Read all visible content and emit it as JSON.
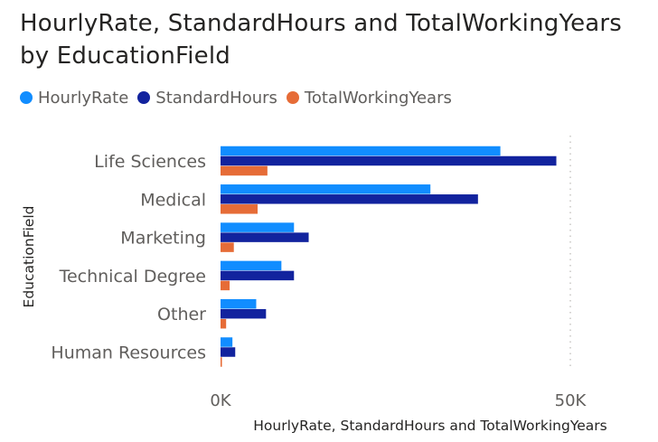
{
  "chart_data": {
    "type": "bar",
    "orientation": "horizontal",
    "title": "HourlyRate, StandardHours and TotalWorkingYears by EducationField",
    "xlabel": "HourlyRate, StandardHours and TotalWorkingYears",
    "ylabel": "EducationField",
    "categories": [
      "Life Sciences",
      "Medical",
      "Marketing",
      "Technical Degree",
      "Other",
      "Human Resources"
    ],
    "series": [
      {
        "name": "HourlyRate",
        "color": "#118DFF",
        "values": [
          40000,
          30000,
          10500,
          8700,
          5100,
          1700
        ]
      },
      {
        "name": "StandardHours",
        "color": "#12239E",
        "values": [
          48000,
          36800,
          12600,
          10500,
          6500,
          2100
        ]
      },
      {
        "name": "TotalWorkingYears",
        "color": "#E66C37",
        "values": [
          6700,
          5300,
          1900,
          1300,
          800,
          200
        ]
      }
    ],
    "xlim": [
      0,
      50000
    ],
    "xticks": [
      {
        "value": 0,
        "label": "0K"
      },
      {
        "value": 50000,
        "label": "50K"
      }
    ],
    "legend_position": "top-left",
    "grid": true
  }
}
